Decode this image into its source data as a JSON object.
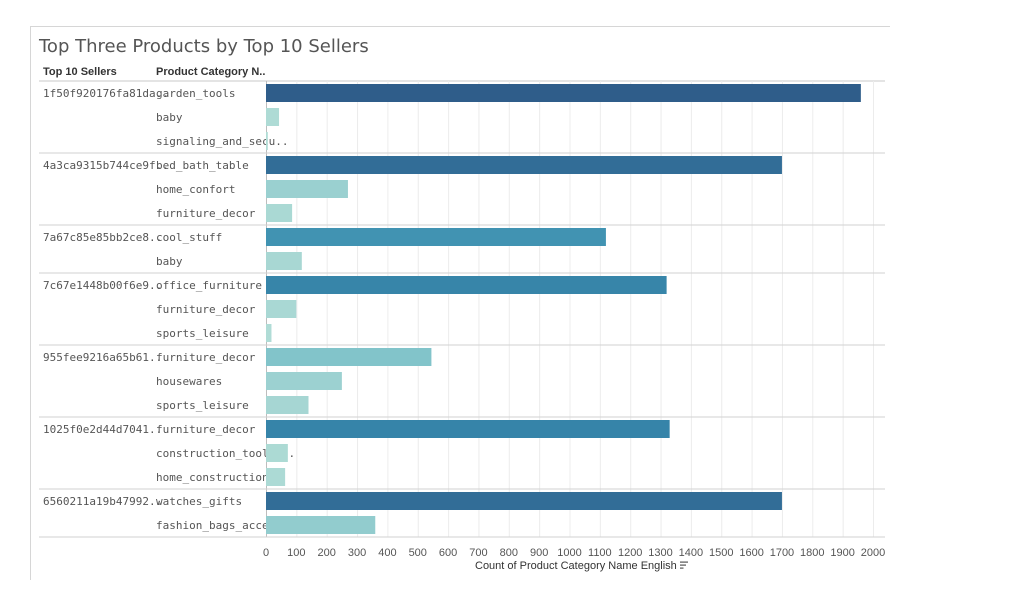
{
  "title": "Top Three Products by Top 10 Sellers",
  "headers": {
    "sellers": "Top 10 Sellers",
    "category": "Product Category N.."
  },
  "axis_title": "Count of Product Category Name English",
  "icons": {
    "sort": "sort-descending-icon"
  },
  "chart_data": {
    "type": "bar",
    "orientation": "horizontal",
    "xlim": [
      0,
      2000
    ],
    "xticks": [
      0,
      100,
      200,
      300,
      400,
      500,
      600,
      700,
      800,
      900,
      1000,
      1100,
      1200,
      1300,
      1400,
      1500,
      1600,
      1700,
      1800,
      1900,
      2000
    ],
    "xlabel": "Count of Product Category Name English",
    "grid": true,
    "colors": {
      "high": "#2e5a88",
      "low": "#b2ddd6"
    },
    "groups": [
      {
        "seller": "1f50f920176fa81da..",
        "rows": [
          {
            "category": "garden_tools",
            "value": 1960
          },
          {
            "category": "baby",
            "value": 43
          },
          {
            "category": "signaling_and_secu..",
            "value": 6
          }
        ]
      },
      {
        "seller": "4a3ca9315b744ce9f..",
        "rows": [
          {
            "category": "bed_bath_table",
            "value": 1700
          },
          {
            "category": "home_confort",
            "value": 270
          },
          {
            "category": "furniture_decor",
            "value": 86
          }
        ]
      },
      {
        "seller": "7a67c85e85bb2ce8..",
        "rows": [
          {
            "category": "cool_stuff",
            "value": 1120
          },
          {
            "category": "baby",
            "value": 118
          }
        ]
      },
      {
        "seller": "7c67e1448b00f6e9..",
        "rows": [
          {
            "category": "office_furniture",
            "value": 1320
          },
          {
            "category": "furniture_decor",
            "value": 100
          },
          {
            "category": "sports_leisure",
            "value": 18
          }
        ]
      },
      {
        "seller": "955fee9216a65b61..",
        "rows": [
          {
            "category": "furniture_decor",
            "value": 545
          },
          {
            "category": "housewares",
            "value": 250
          },
          {
            "category": "sports_leisure",
            "value": 140
          }
        ]
      },
      {
        "seller": "1025f0e2d44d7041..",
        "rows": [
          {
            "category": "furniture_decor",
            "value": 1330
          },
          {
            "category": "construction_tools_..",
            "value": 72
          },
          {
            "category": "home_construction",
            "value": 63
          }
        ]
      },
      {
        "seller": "6560211a19b47992..",
        "rows": [
          {
            "category": "watches_gifts",
            "value": 1700
          },
          {
            "category": "fashion_bags_acces..",
            "value": 360
          }
        ]
      }
    ]
  }
}
